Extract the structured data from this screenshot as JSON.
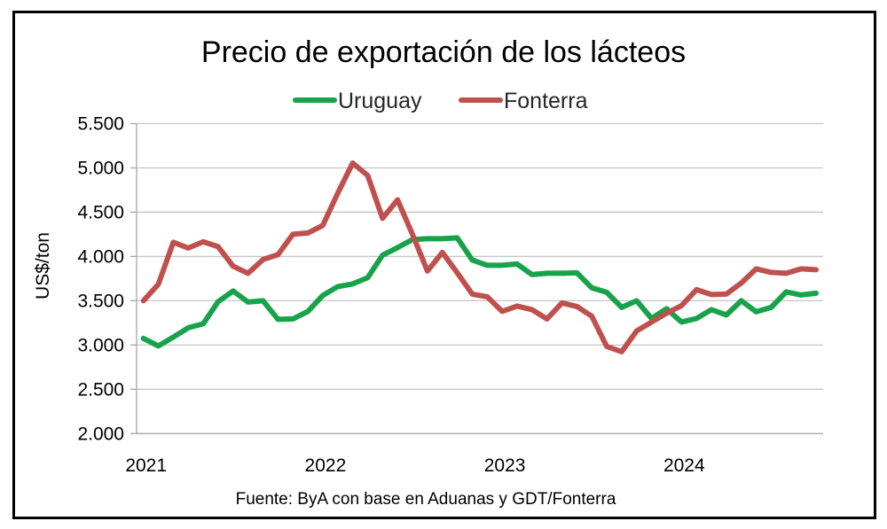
{
  "chart_data": {
    "type": "line",
    "title": "Precio de exportación de los lácteos",
    "xlabel": "",
    "ylabel": "US$/ton",
    "source": "Fuente: ByA con base en Aduanas y GDT/Fonterra",
    "ylim": [
      2000,
      5500
    ],
    "yticks": [
      2000,
      2500,
      3000,
      3500,
      4000,
      4500,
      5000,
      5500
    ],
    "ytick_labels": [
      "2.000",
      "2.500",
      "3.000",
      "3.500",
      "4.000",
      "4.500",
      "5.000",
      "5.500"
    ],
    "x_period": "monthly, Jan 2021 – Oct 2024",
    "xtick_labels": [
      {
        "label": "2021",
        "index": 0
      },
      {
        "label": "2022",
        "index": 12
      },
      {
        "label": "2023",
        "index": 24
      },
      {
        "label": "2024",
        "index": 36
      }
    ],
    "n_points": 46,
    "grid": true,
    "legend_position": "top",
    "series": [
      {
        "name": "Uruguay",
        "color": "#17a34a",
        "values": [
          3075,
          2990,
          3090,
          3195,
          3240,
          3490,
          3610,
          3485,
          3500,
          3290,
          3295,
          3380,
          3560,
          3660,
          3690,
          3760,
          4015,
          4100,
          4190,
          4200,
          4200,
          4210,
          3960,
          3900,
          3900,
          3915,
          3795,
          3810,
          3810,
          3815,
          3645,
          3595,
          3425,
          3500,
          3300,
          3410,
          3260,
          3300,
          3400,
          3340,
          3500,
          3375,
          3425,
          3600,
          3565,
          3585
        ]
      },
      {
        "name": "Fonterra",
        "color": "#c0504d",
        "values": [
          3500,
          3685,
          4160,
          4095,
          4165,
          4110,
          3890,
          3810,
          3965,
          4020,
          4250,
          4265,
          4350,
          4715,
          5055,
          4915,
          4430,
          4640,
          4250,
          3835,
          4045,
          3815,
          3575,
          3545,
          3380,
          3440,
          3400,
          3295,
          3475,
          3435,
          3325,
          2985,
          2925,
          3160,
          3260,
          3360,
          3445,
          3625,
          3570,
          3575,
          3700,
          3860,
          3820,
          3810,
          3860,
          3850
        ]
      }
    ]
  }
}
